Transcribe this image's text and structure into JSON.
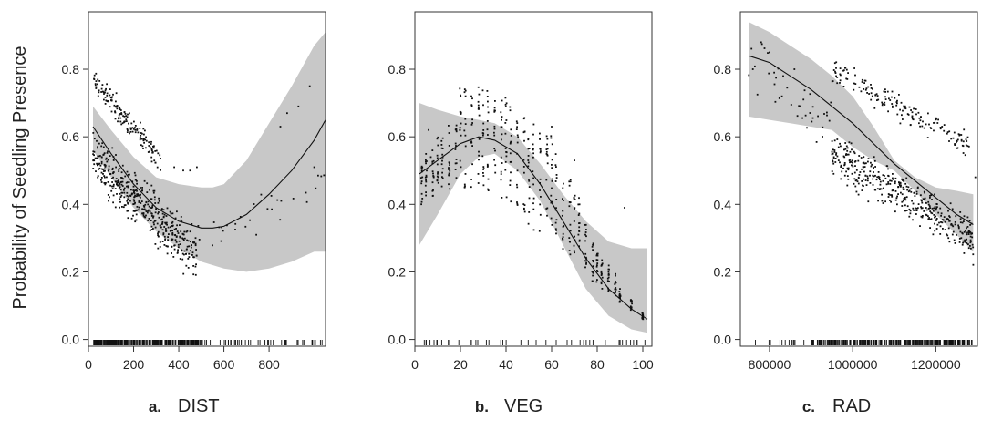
{
  "ylabel": "Probability of Seedling Presence",
  "chart_data": [
    {
      "type": "scatter",
      "panel_letter": "a.",
      "xlabel": "DIST",
      "xlim": [
        0,
        1050
      ],
      "ylim": [
        -0.02,
        0.97
      ],
      "xticks": [
        0,
        200,
        400,
        600,
        800
      ],
      "xtick_labels": [
        "0",
        "200",
        "400",
        "600",
        "800"
      ],
      "yticks": [
        0,
        0.2,
        0.4,
        0.6,
        0.8
      ],
      "ytick_labels": [
        "0.0",
        "0.2",
        "0.4",
        "0.6",
        "0.8"
      ],
      "fit_line": {
        "x": [
          20,
          100,
          200,
          300,
          400,
          500,
          550,
          600,
          700,
          800,
          900,
          1000,
          1050
        ],
        "y": [
          0.63,
          0.55,
          0.46,
          0.39,
          0.35,
          0.33,
          0.33,
          0.335,
          0.37,
          0.43,
          0.5,
          0.59,
          0.65
        ]
      },
      "confidence_band": {
        "x": [
          20,
          100,
          200,
          300,
          400,
          500,
          550,
          600,
          700,
          800,
          900,
          1000,
          1050
        ],
        "upper": [
          0.69,
          0.62,
          0.54,
          0.48,
          0.46,
          0.45,
          0.45,
          0.46,
          0.53,
          0.64,
          0.75,
          0.87,
          0.91
        ],
        "lower": [
          0.56,
          0.48,
          0.39,
          0.32,
          0.27,
          0.23,
          0.22,
          0.21,
          0.2,
          0.21,
          0.23,
          0.26,
          0.26
        ]
      },
      "point_clusters": [
        {
          "x": [
            20,
            320
          ],
          "y": [
            0.77,
            0.53
          ],
          "n": 160,
          "spread": 0.025
        },
        {
          "x": [
            20,
            480
          ],
          "y": [
            0.54,
            0.25
          ],
          "n": 450,
          "spread": 0.05
        },
        {
          "x": [
            450,
            1050
          ],
          "y": [
            0.3,
            0.45
          ],
          "n": 30,
          "spread": 0.035
        }
      ],
      "extra_points": [
        {
          "x": 380,
          "y": 0.51
        },
        {
          "x": 420,
          "y": 0.5
        },
        {
          "x": 450,
          "y": 0.5
        },
        {
          "x": 480,
          "y": 0.51
        },
        {
          "x": 850,
          "y": 0.63
        },
        {
          "x": 880,
          "y": 0.67
        },
        {
          "x": 930,
          "y": 0.69
        },
        {
          "x": 980,
          "y": 0.75
        },
        {
          "x": 1000,
          "y": 0.51
        }
      ],
      "rug_ranges": [
        {
          "from": 20,
          "to": 500,
          "n": 300
        },
        {
          "from": 500,
          "to": 1040,
          "n": 45
        }
      ]
    },
    {
      "type": "scatter",
      "panel_letter": "b.",
      "xlabel": "VEG",
      "xlim": [
        0,
        104
      ],
      "ylim": [
        -0.02,
        0.97
      ],
      "xticks": [
        0,
        20,
        40,
        60,
        80,
        100
      ],
      "xtick_labels": [
        "0",
        "20",
        "40",
        "60",
        "80",
        "100"
      ],
      "yticks": [
        0,
        0.2,
        0.4,
        0.6,
        0.8
      ],
      "ytick_labels": [
        "0.0",
        "0.2",
        "0.4",
        "0.6",
        "0.8"
      ],
      "fit_line": {
        "x": [
          2,
          10,
          20,
          28,
          35,
          45,
          55,
          65,
          75,
          85,
          95,
          102
        ],
        "y": [
          0.49,
          0.53,
          0.58,
          0.6,
          0.59,
          0.55,
          0.46,
          0.35,
          0.24,
          0.15,
          0.09,
          0.06
        ]
      },
      "confidence_band": {
        "x": [
          2,
          10,
          20,
          28,
          35,
          45,
          55,
          65,
          75,
          85,
          95,
          102
        ],
        "upper": [
          0.7,
          0.68,
          0.66,
          0.65,
          0.64,
          0.6,
          0.52,
          0.43,
          0.35,
          0.29,
          0.27,
          0.27
        ],
        "lower": [
          0.28,
          0.37,
          0.49,
          0.54,
          0.55,
          0.5,
          0.41,
          0.28,
          0.15,
          0.07,
          0.03,
          0.02
        ]
      },
      "point_columns": {
        "x_values": [
          3,
          5,
          8,
          10,
          12,
          15,
          18,
          20,
          22,
          25,
          28,
          30,
          32,
          35,
          38,
          40,
          42,
          45,
          48,
          50,
          52,
          55,
          58,
          60,
          62,
          65,
          68,
          70,
          72,
          75,
          78,
          80,
          82,
          85,
          88,
          90,
          95,
          100
        ],
        "y_low": [
          0.4,
          0.42,
          0.42,
          0.44,
          0.45,
          0.44,
          0.45,
          0.46,
          0.45,
          0.45,
          0.46,
          0.44,
          0.44,
          0.44,
          0.42,
          0.41,
          0.39,
          0.38,
          0.36,
          0.34,
          0.32,
          0.32,
          0.34,
          0.33,
          0.31,
          0.26,
          0.25,
          0.24,
          0.24,
          0.21,
          0.17,
          0.17,
          0.15,
          0.14,
          0.13,
          0.11,
          0.08,
          0.06
        ],
        "y_high": [
          0.52,
          0.55,
          0.58,
          0.6,
          0.62,
          0.64,
          0.66,
          0.75,
          0.75,
          0.75,
          0.75,
          0.75,
          0.74,
          0.74,
          0.73,
          0.72,
          0.7,
          0.69,
          0.67,
          0.66,
          0.65,
          0.64,
          0.63,
          0.62,
          0.58,
          0.52,
          0.48,
          0.44,
          0.42,
          0.34,
          0.3,
          0.26,
          0.24,
          0.22,
          0.2,
          0.15,
          0.12,
          0.08
        ],
        "n_per_column": 14
      },
      "extra_points": [
        {
          "x": 6,
          "y": 0.62
        },
        {
          "x": 7,
          "y": 0.54
        },
        {
          "x": 60,
          "y": 0.63
        },
        {
          "x": 70,
          "y": 0.53
        },
        {
          "x": 92,
          "y": 0.39
        }
      ],
      "rug_ranges": [
        {
          "from": 3,
          "to": 102,
          "n": 42
        }
      ]
    },
    {
      "type": "scatter",
      "panel_letter": "c.",
      "xlabel": "RAD",
      "xlim": [
        730000,
        1300000
      ],
      "ylim": [
        -0.02,
        0.97
      ],
      "xticks": [
        800000,
        1000000,
        1200000
      ],
      "xtick_labels": [
        "800000",
        "1000000",
        "1200000"
      ],
      "yticks": [
        0,
        0.2,
        0.4,
        0.6,
        0.8
      ],
      "ytick_labels": [
        "0.0",
        "0.2",
        "0.4",
        "0.6",
        "0.8"
      ],
      "fit_line": {
        "x": [
          750000,
          800000,
          850000,
          900000,
          950000,
          1000000,
          1050000,
          1100000,
          1150000,
          1200000,
          1250000,
          1290000
        ],
        "y": [
          0.84,
          0.82,
          0.78,
          0.74,
          0.69,
          0.64,
          0.58,
          0.52,
          0.47,
          0.42,
          0.37,
          0.34
        ]
      },
      "confidence_band": {
        "x": [
          750000,
          800000,
          850000,
          900000,
          950000,
          1000000,
          1050000,
          1100000,
          1150000,
          1200000,
          1250000,
          1290000
        ],
        "upper": [
          0.94,
          0.91,
          0.87,
          0.83,
          0.78,
          0.72,
          0.63,
          0.53,
          0.48,
          0.45,
          0.44,
          0.43
        ],
        "lower": [
          0.66,
          0.65,
          0.64,
          0.63,
          0.62,
          0.57,
          0.53,
          0.5,
          0.44,
          0.37,
          0.31,
          0.26
        ]
      },
      "point_clusters": [
        {
          "x": [
            950000,
            1280000
          ],
          "y": [
            0.8,
            0.57
          ],
          "n": 170,
          "spread": 0.025
        },
        {
          "x": [
            950000,
            1290000
          ],
          "y": [
            0.55,
            0.3
          ],
          "n": 420,
          "spread": 0.045
        },
        {
          "x": [
            750000,
            950000
          ],
          "y": [
            0.84,
            0.62
          ],
          "n": 40,
          "spread": 0.06
        }
      ],
      "extra_points": [
        {
          "x": 780000,
          "y": 0.88
        },
        {
          "x": 800000,
          "y": 0.85
        },
        {
          "x": 760000,
          "y": 0.8
        },
        {
          "x": 830000,
          "y": 0.72
        },
        {
          "x": 860000,
          "y": 0.8
        },
        {
          "x": 1295000,
          "y": 0.48
        }
      ],
      "rug_ranges": [
        {
          "from": 760000,
          "to": 900000,
          "n": 14
        },
        {
          "from": 900000,
          "to": 1290000,
          "n": 260
        }
      ]
    }
  ]
}
